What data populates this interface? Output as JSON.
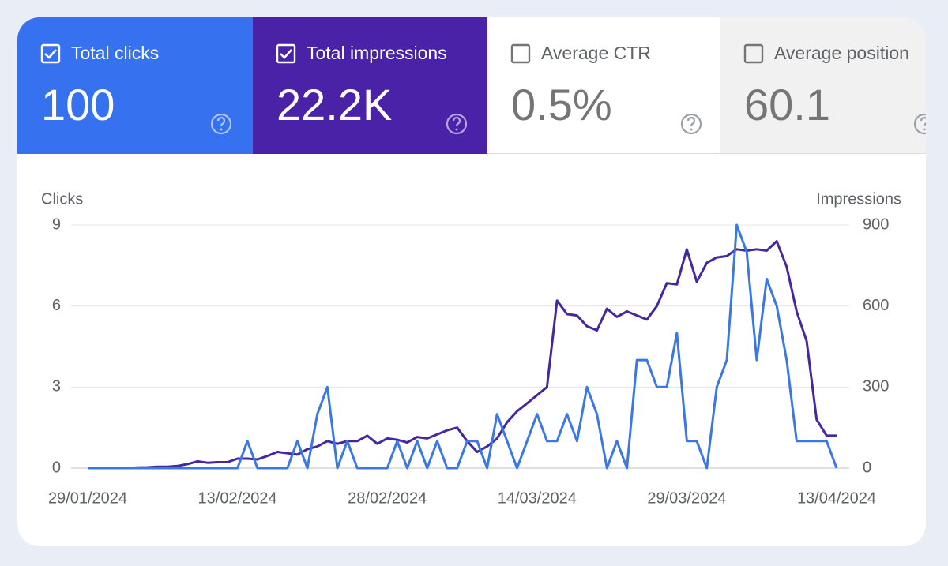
{
  "cards": [
    {
      "label": "Total clicks",
      "value": "100",
      "checked": true,
      "color": "#3672ef"
    },
    {
      "label": "Total impressions",
      "value": "22.2K",
      "checked": true,
      "color": "#4a22a7"
    },
    {
      "label": "Average CTR",
      "value": "0.5%",
      "checked": false,
      "color": "#ffffff"
    },
    {
      "label": "Average position",
      "value": "60.1",
      "checked": false,
      "color": "#f1f1f1"
    }
  ],
  "chart_data": {
    "type": "line",
    "y_label": "Clicks",
    "y2_label": "Impressions",
    "x": [
      "29/01/2024",
      "30/01/2024",
      "31/01/2024",
      "01/02/2024",
      "02/02/2024",
      "03/02/2024",
      "04/02/2024",
      "05/02/2024",
      "06/02/2024",
      "07/02/2024",
      "08/02/2024",
      "09/02/2024",
      "10/02/2024",
      "11/02/2024",
      "12/02/2024",
      "13/02/2024",
      "14/02/2024",
      "15/02/2024",
      "16/02/2024",
      "17/02/2024",
      "18/02/2024",
      "19/02/2024",
      "20/02/2024",
      "21/02/2024",
      "22/02/2024",
      "23/02/2024",
      "24/02/2024",
      "25/02/2024",
      "26/02/2024",
      "27/02/2024",
      "28/02/2024",
      "29/02/2024",
      "01/03/2024",
      "02/03/2024",
      "03/03/2024",
      "04/03/2024",
      "05/03/2024",
      "06/03/2024",
      "07/03/2024",
      "08/03/2024",
      "09/03/2024",
      "10/03/2024",
      "11/03/2024",
      "12/03/2024",
      "13/03/2024",
      "14/03/2024",
      "15/03/2024",
      "16/03/2024",
      "17/03/2024",
      "18/03/2024",
      "19/03/2024",
      "20/03/2024",
      "21/03/2024",
      "22/03/2024",
      "23/03/2024",
      "24/03/2024",
      "25/03/2024",
      "26/03/2024",
      "27/03/2024",
      "28/03/2024",
      "29/03/2024",
      "30/03/2024",
      "31/03/2024",
      "01/04/2024",
      "02/04/2024",
      "03/04/2024",
      "04/04/2024",
      "05/04/2024",
      "06/04/2024",
      "07/04/2024",
      "08/04/2024",
      "09/04/2024",
      "10/04/2024",
      "11/04/2024",
      "12/04/2024",
      "13/04/2024"
    ],
    "xticks": [
      "29/01/2024",
      "13/02/2024",
      "28/02/2024",
      "14/03/2024",
      "29/03/2024",
      "13/04/2024"
    ],
    "ylim": [
      0,
      9
    ],
    "yticks": [
      0,
      3,
      6,
      9
    ],
    "y2lim": [
      0,
      900
    ],
    "y2ticks": [
      0,
      300,
      600,
      900
    ],
    "grid": true,
    "series": [
      {
        "name": "Clicks",
        "color": "#3b78e7",
        "values": [
          0,
          0,
          0,
          0,
          0,
          0,
          0,
          0,
          0,
          0,
          0,
          0,
          0,
          0,
          0,
          0,
          1,
          0,
          0,
          0,
          0,
          1,
          0,
          2,
          3,
          0,
          1,
          0,
          0,
          0,
          0,
          1,
          0,
          1,
          0,
          1,
          0,
          0,
          1,
          1,
          0,
          2,
          1,
          0,
          1,
          2,
          1,
          1,
          2,
          1,
          3,
          2,
          0,
          1,
          0,
          4,
          4,
          3,
          3,
          5,
          1,
          1,
          0,
          3,
          4,
          9,
          8,
          4,
          7,
          6,
          4,
          1,
          1,
          1,
          1,
          0
        ]
      },
      {
        "name": "Impressions",
        "color": "#4527a0",
        "axis": "y2",
        "values": [
          0,
          0,
          0,
          0,
          0,
          2,
          3,
          5,
          5,
          8,
          15,
          25,
          20,
          22,
          22,
          35,
          35,
          32,
          45,
          60,
          55,
          50,
          70,
          80,
          100,
          90,
          100,
          100,
          120,
          90,
          110,
          105,
          95,
          115,
          110,
          125,
          140,
          150,
          100,
          60,
          80,
          110,
          170,
          210,
          240,
          270,
          300,
          620,
          570,
          565,
          525,
          510,
          590,
          560,
          580,
          565,
          550,
          600,
          685,
          680,
          810,
          690,
          760,
          780,
          785,
          810,
          805,
          810,
          805,
          840,
          745,
          580,
          470,
          180,
          120,
          120
        ]
      }
    ]
  }
}
